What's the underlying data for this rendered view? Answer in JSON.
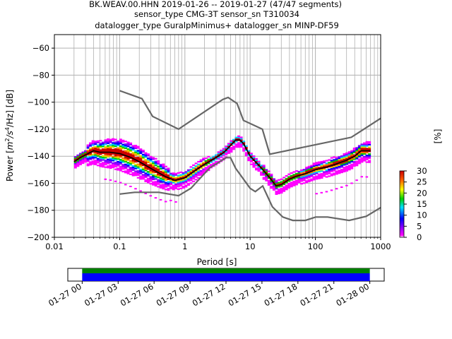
{
  "chart_data": [
    {
      "type": "heatmap",
      "title_lines": [
        "BK.WEAV.00.HHN   2019-01-26 -- 2019-01-27  (47/47 segments)",
        "sensor_type CMG-3T sensor_sn T310034",
        "datalogger_type GuralpMinimus+ datalogger_sn MINP-DF59"
      ],
      "xlabel": "Period [s]",
      "ylabel_parts": [
        "Power [",
        "m",
        "2",
        "/s",
        "4",
        "/Hz] [dB]"
      ],
      "xscale": "log",
      "xlim": [
        0.01,
        1000
      ],
      "ylim": [
        -200,
        -50
      ],
      "xticks": [
        0.01,
        0.1,
        1,
        10,
        100,
        1000
      ],
      "xtick_labels": [
        "0.01",
        "0.1",
        "1",
        "10",
        "100",
        "1000"
      ],
      "yticks": [
        -60,
        -80,
        -100,
        -120,
        -140,
        -160,
        -180,
        -200
      ],
      "ytick_labels": [
        "−60",
        "−80",
        "−100",
        "−120",
        "−140",
        "−160",
        "−180",
        "−200"
      ],
      "grid": true,
      "noise_model_high": {
        "x": [
          0.1,
          0.22,
          0.32,
          0.8,
          3.8,
          4.6,
          6.3,
          7.9,
          15.4,
          20,
          354.8,
          1000
        ],
        "y": [
          -91.5,
          -97.4,
          -110.5,
          -120,
          -98,
          -96.5,
          -101,
          -113.5,
          -120,
          -138.5,
          -126,
          -112
        ]
      },
      "noise_model_low": {
        "x": [
          0.1,
          0.17,
          0.4,
          0.8,
          1.24,
          2.4,
          4.3,
          5,
          6,
          10,
          12,
          15.6,
          21.9,
          31.6,
          45,
          70,
          101,
          154,
          328,
          600,
          1000
        ],
        "y": [
          -168,
          -166.7,
          -166.7,
          -169.2,
          -163.7,
          -148.6,
          -141.1,
          -141.1,
          -149,
          -163.8,
          -166.2,
          -162,
          -177.5,
          -185,
          -187.5,
          -187.5,
          -185,
          -185,
          -187.5,
          -184.5,
          -178
        ]
      },
      "mode_curve": {
        "x": [
          0.02,
          0.025,
          0.03,
          0.04,
          0.05,
          0.07,
          0.1,
          0.15,
          0.2,
          0.3,
          0.5,
          0.7,
          1,
          1.5,
          2,
          3,
          4,
          5,
          6,
          7,
          8,
          10,
          15,
          20,
          25,
          30,
          40,
          50,
          70,
          100,
          150,
          200,
          300,
          400,
          500,
          700
        ],
        "y": [
          -144,
          -141,
          -139,
          -136,
          -137,
          -137,
          -138,
          -141,
          -144,
          -149,
          -155,
          -158,
          -156,
          -150,
          -146,
          -141,
          -137,
          -132,
          -128,
          -128,
          -131,
          -140,
          -149,
          -156,
          -162,
          -161,
          -157,
          -155,
          -153,
          -150,
          -148,
          -146,
          -143,
          -140,
          -136,
          -136
        ]
      },
      "colorbar": {
        "label": "[%]",
        "ticks": [
          0,
          5,
          10,
          15,
          20,
          25,
          30
        ],
        "range": [
          0,
          30
        ]
      }
    },
    {
      "type": "timeline",
      "xtick_labels": [
        "01-27 00",
        "01-27 03",
        "01-27 06",
        "01-27 09",
        "01-27 12",
        "01-27 15",
        "01-27 18",
        "01-27 21",
        "01-28 00"
      ],
      "bars": [
        {
          "color": "#008000",
          "start_hour": 0,
          "end_hour": 24
        },
        {
          "color": "#0000ff",
          "start_hour": 0,
          "end_hour": 24
        }
      ],
      "xlim_hours": [
        -1.2,
        25.2
      ]
    }
  ]
}
